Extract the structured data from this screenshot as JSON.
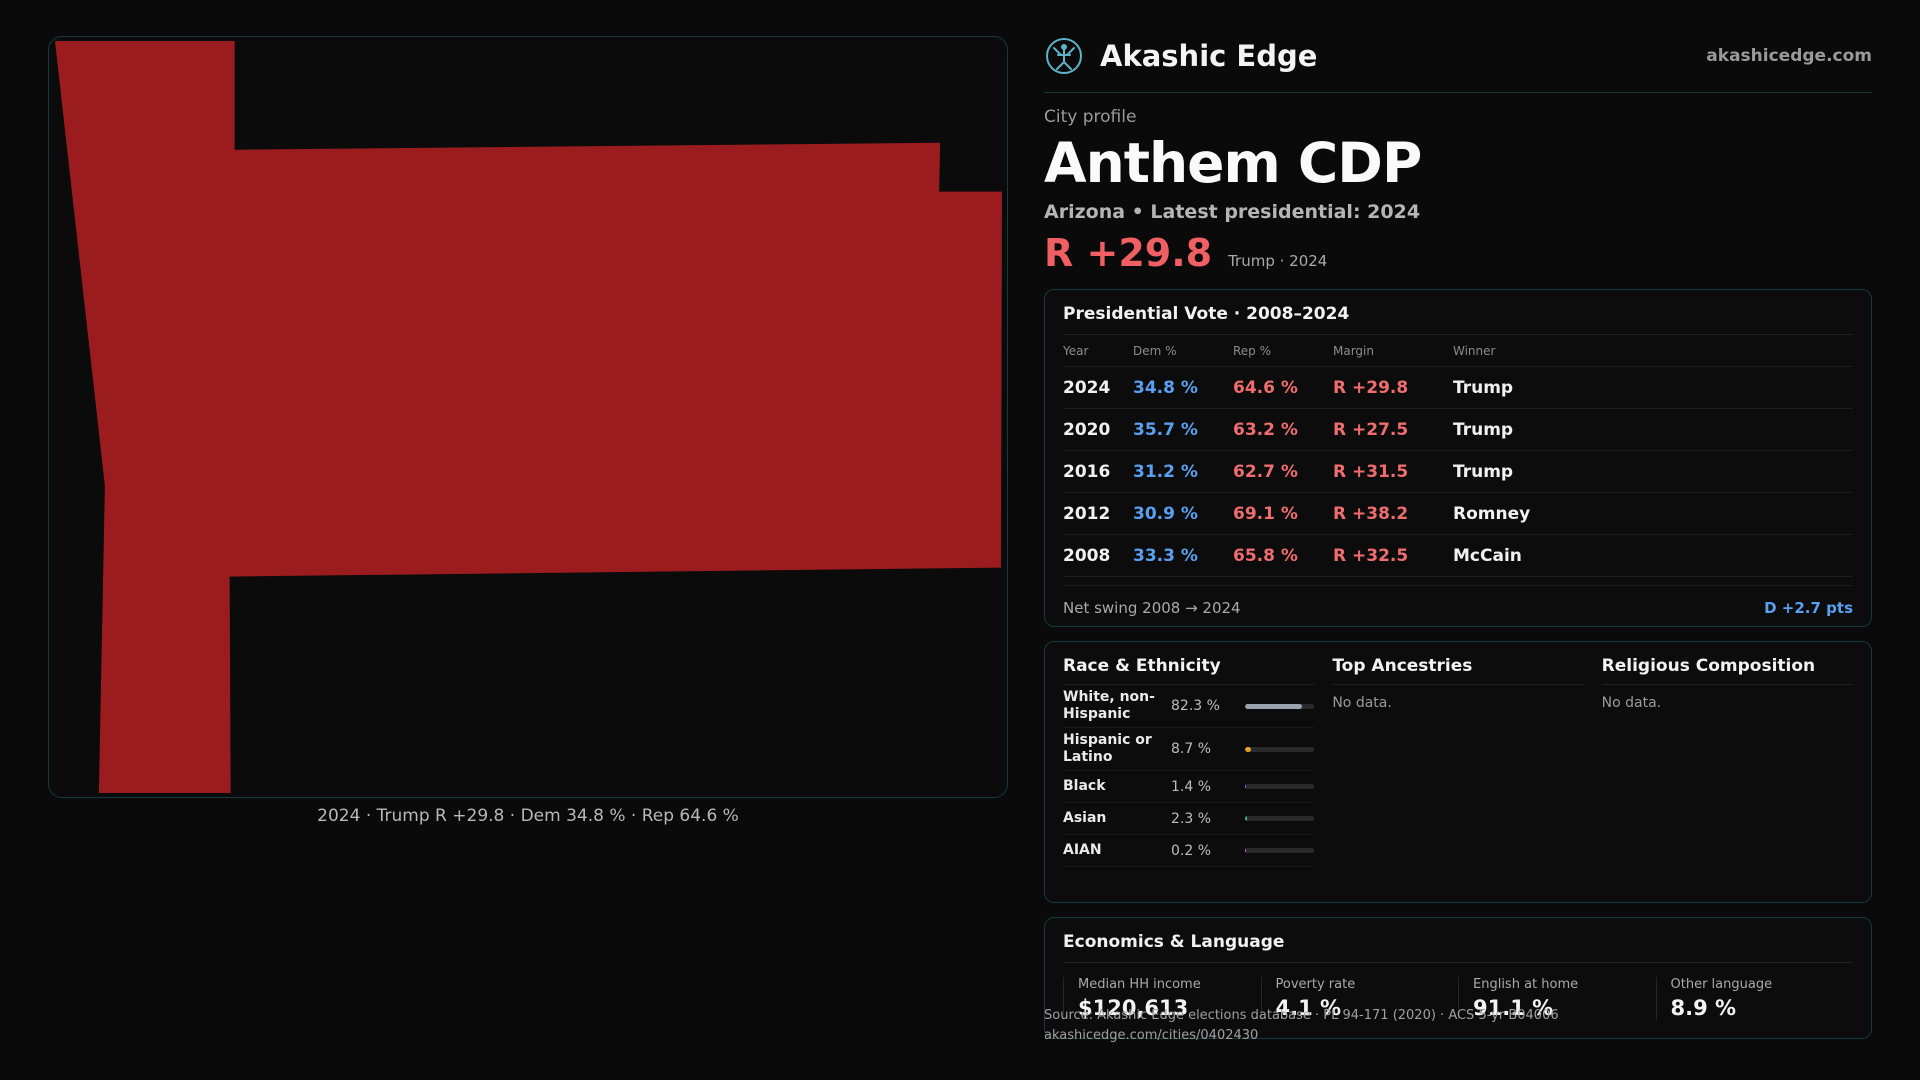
{
  "brand": {
    "name": "Akashic Edge",
    "url": "akashicedge.com",
    "logo_icon": "compass-rose-icon"
  },
  "profile": {
    "eyebrow": "City profile",
    "title": "Anthem CDP",
    "subtitle": "Arizona • Latest presidential: 2024",
    "margin": "R +29.8",
    "margin_note": "Trump · 2024"
  },
  "map": {
    "caption": "2024 · Trump R +29.8 · Dem 34.8 % · Rep 64.6 %",
    "fill_color": "#9b1c1f"
  },
  "vote": {
    "title": "Presidential Vote · 2008–2024",
    "headers": {
      "year": "Year",
      "dem": "Dem %",
      "rep": "Rep %",
      "margin": "Margin",
      "winner": "Winner"
    },
    "rows": [
      {
        "year": "2024",
        "dem": "34.8 %",
        "rep": "64.6 %",
        "margin": "R +29.8",
        "winner": "Trump"
      },
      {
        "year": "2020",
        "dem": "35.7 %",
        "rep": "63.2 %",
        "margin": "R +27.5",
        "winner": "Trump"
      },
      {
        "year": "2016",
        "dem": "31.2 %",
        "rep": "62.7 %",
        "margin": "R +31.5",
        "winner": "Trump"
      },
      {
        "year": "2012",
        "dem": "30.9 %",
        "rep": "69.1 %",
        "margin": "R +38.2",
        "winner": "Romney"
      },
      {
        "year": "2008",
        "dem": "33.3 %",
        "rep": "65.8 %",
        "margin": "R +32.5",
        "winner": "McCain"
      }
    ],
    "swing_label": "Net swing 2008 → 2024",
    "swing_value": "D +2.7 pts"
  },
  "demographics": {
    "race": {
      "title": "Race & Ethnicity",
      "rows": [
        {
          "label": "White, non-Hispanic",
          "value": "82.3 %",
          "pct": 82.3,
          "color": "#9aa3b0"
        },
        {
          "label": "Hispanic or Latino",
          "value": "8.7 %",
          "pct": 8.7,
          "color": "#e0a12a"
        },
        {
          "label": "Black",
          "value": "1.4 %",
          "pct": 1.4,
          "color": "#6b7cff"
        },
        {
          "label": "Asian",
          "value": "2.3 %",
          "pct": 2.3,
          "color": "#3fbf7f"
        },
        {
          "label": "AIAN",
          "value": "0.2 %",
          "pct": 0.2,
          "color": "#c86bd6"
        }
      ]
    },
    "ancestries": {
      "title": "Top Ancestries",
      "empty": "No data."
    },
    "religion": {
      "title": "Religious Composition",
      "empty": "No data."
    }
  },
  "economics": {
    "title": "Economics & Language",
    "items": [
      {
        "label": "Median HH income",
        "value": "$120,613"
      },
      {
        "label": "Poverty rate",
        "value": "4.1 %"
      },
      {
        "label": "English at home",
        "value": "91.1 %"
      },
      {
        "label": "Other language",
        "value": "8.9 %"
      }
    ]
  },
  "footer": {
    "source": "Source: Akashic Edge elections database · PL 94-171 (2020) · ACS 5-yr B04006",
    "link": "akashicedge.com/cities/0402430"
  }
}
